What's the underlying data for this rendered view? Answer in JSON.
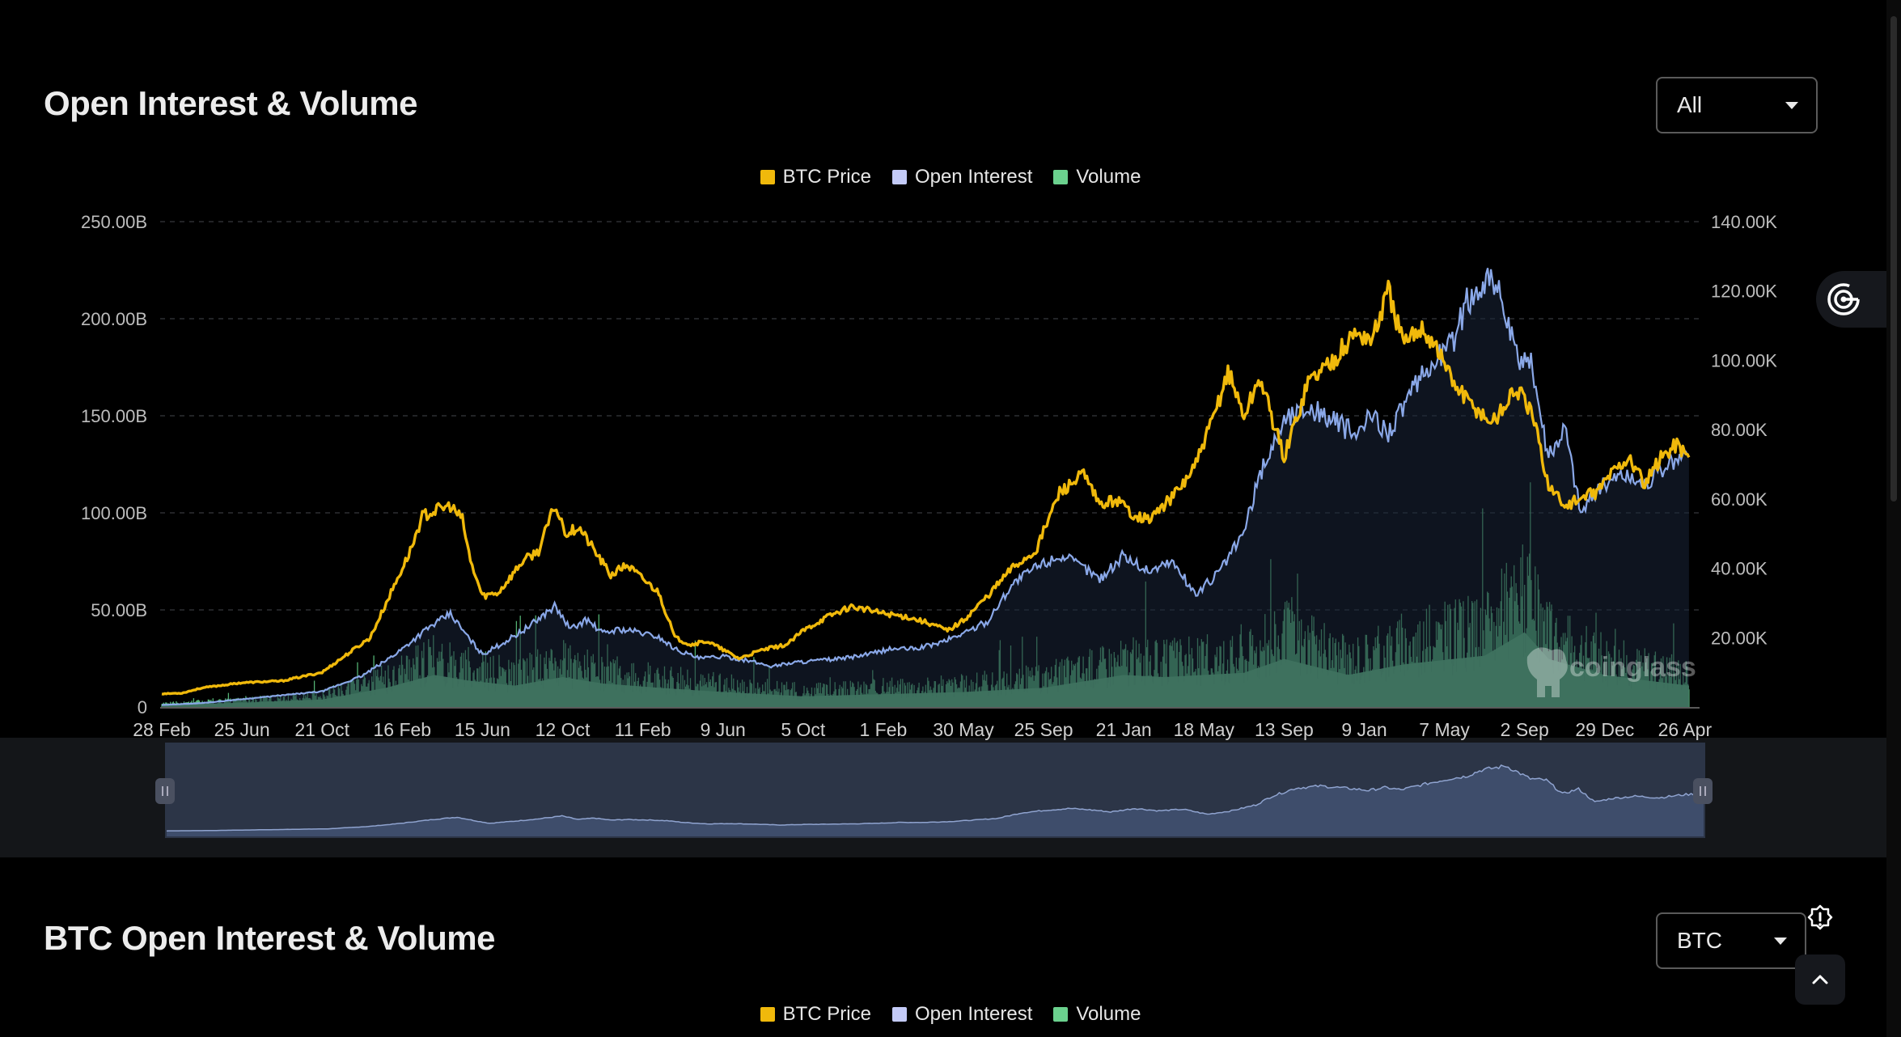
{
  "sections": [
    {
      "title": "Open Interest & Volume",
      "selector_value": "All"
    },
    {
      "title": "BTC Open Interest & Volume",
      "selector_value": "BTC"
    }
  ],
  "legend": [
    {
      "label": "BTC Price",
      "color": "#f0b90b"
    },
    {
      "label": "Open Interest",
      "color": "#c3caf7"
    },
    {
      "label": "Volume",
      "color": "#6bd18e"
    }
  ],
  "watermark": "coinglass",
  "chart_data": {
    "type": "area",
    "x_tick_labels": [
      "28 Feb",
      "25 Jun",
      "21 Oct",
      "16 Feb",
      "15 Jun",
      "12 Oct",
      "11 Feb",
      "9 Jun",
      "5 Oct",
      "1 Feb",
      "30 May",
      "25 Sep",
      "21 Jan",
      "18 May",
      "13 Sep",
      "9 Jan",
      "7 May",
      "2 Sep",
      "29 Dec",
      "26 Apr"
    ],
    "y_left": {
      "ticks": [
        "0",
        "50.00B",
        "100.00B",
        "150.00B",
        "200.00B",
        "250.00B"
      ],
      "range": [
        0,
        250
      ]
    },
    "y_right": {
      "ticks": [
        "20.00K",
        "40.00K",
        "60.00K",
        "80.00K",
        "100.00K",
        "120.00K",
        "140.00K"
      ],
      "range": [
        0,
        140
      ]
    },
    "grid": true,
    "legend_position": "top-center",
    "series": [
      {
        "name": "BTC Price",
        "axis": "right",
        "unit": "K USD",
        "x": [
          0,
          0.25,
          0.5,
          1,
          1.5,
          2,
          2.3,
          2.6,
          2.9,
          3.1,
          3.25,
          3.45,
          3.6,
          3.75,
          3.85,
          4,
          4.2,
          4.5,
          4.7,
          4.9,
          5.05,
          5.2,
          5.4,
          5.6,
          5.8,
          6,
          6.2,
          6.4,
          6.6,
          6.8,
          7,
          7.2,
          7.5,
          7.8,
          8,
          8.3,
          8.6,
          9,
          9.3,
          9.6,
          9.8,
          10,
          10.3,
          10.6,
          10.9,
          11.2,
          11.5,
          11.7,
          11.9,
          12.1,
          12.3,
          12.5,
          12.7,
          12.9,
          13.1,
          13.3,
          13.5,
          13.7,
          14,
          14.3,
          14.6,
          14.9,
          15.1,
          15.3,
          15.5,
          15.7,
          15.9,
          16.1,
          16.3,
          16.6,
          16.9,
          17.1,
          17.3,
          17.5,
          17.7,
          17.9,
          18.1,
          18.3,
          18.5,
          18.7,
          18.9,
          19.05
        ],
        "values": [
          3.8,
          4,
          5.5,
          7,
          7.5,
          10,
          15,
          20,
          35,
          45,
          55,
          57,
          58,
          54,
          42,
          32,
          33,
          42,
          45,
          58,
          50,
          52,
          45,
          38,
          41,
          37,
          33,
          20,
          18,
          19,
          16.5,
          14,
          16.5,
          18,
          22,
          26,
          29,
          27,
          26,
          24,
          22,
          25,
          32,
          40,
          45,
          62,
          67,
          58,
          60,
          56,
          54,
          58,
          63,
          70,
          82,
          97,
          84,
          95,
          72,
          94,
          100,
          108,
          106,
          120,
          104,
          110,
          104,
          94,
          88,
          82,
          92,
          84,
          64,
          58,
          60,
          62,
          68,
          72,
          64,
          72,
          76,
          72
        ]
      },
      {
        "name": "Open Interest",
        "axis": "left",
        "unit": "B USD",
        "x": [
          0,
          0.5,
          1,
          1.5,
          2,
          2.5,
          2.8,
          3,
          3.3,
          3.6,
          3.8,
          4,
          4.3,
          4.6,
          4.9,
          5.1,
          5.3,
          5.5,
          5.7,
          5.9,
          6.2,
          6.4,
          6.7,
          7,
          7.3,
          7.6,
          7.9,
          8.2,
          8.5,
          8.8,
          9.1,
          9.4,
          9.7,
          10,
          10.3,
          10.6,
          10.9,
          11.2,
          11.5,
          11.7,
          12,
          12.3,
          12.6,
          12.9,
          13.2,
          13.5,
          13.7,
          14,
          14.3,
          14.6,
          14.9,
          15.1,
          15.3,
          15.6,
          15.9,
          16.1,
          16.3,
          16.6,
          16.9,
          17.1,
          17.3,
          17.5,
          17.7,
          17.9,
          18.2,
          18.5,
          18.8,
          19.05
        ],
        "values": [
          1,
          2,
          4,
          6,
          8,
          16,
          24,
          30,
          40,
          48,
          37,
          27,
          34,
          42,
          52,
          40,
          45,
          38,
          40,
          39,
          36,
          30,
          25,
          26,
          24,
          21,
          23,
          24,
          25,
          27,
          30,
          30,
          33,
          38,
          44,
          63,
          72,
          78,
          72,
          66,
          78,
          70,
          75,
          58,
          70,
          90,
          120,
          148,
          155,
          148,
          140,
          150,
          142,
          162,
          180,
          188,
          210,
          224,
          180,
          175,
          128,
          145,
          100,
          112,
          120,
          115,
          125,
          130
        ]
      },
      {
        "name": "Volume",
        "axis": "left",
        "unit": "B USD",
        "x": [
          0,
          1,
          2,
          2.8,
          3.4,
          3.8,
          4.4,
          5,
          5.5,
          6.2,
          7,
          8,
          9,
          10,
          11,
          12,
          12.5,
          13.5,
          14,
          14.8,
          15.5,
          16.5,
          17,
          17.3,
          18,
          18.5,
          19.05
        ],
        "values": [
          2,
          4,
          7,
          18,
          30,
          25,
          20,
          28,
          22,
          18,
          14,
          10,
          12,
          14,
          18,
          30,
          28,
          32,
          45,
          30,
          40,
          48,
          70,
          45,
          30,
          25,
          20
        ]
      }
    ]
  }
}
